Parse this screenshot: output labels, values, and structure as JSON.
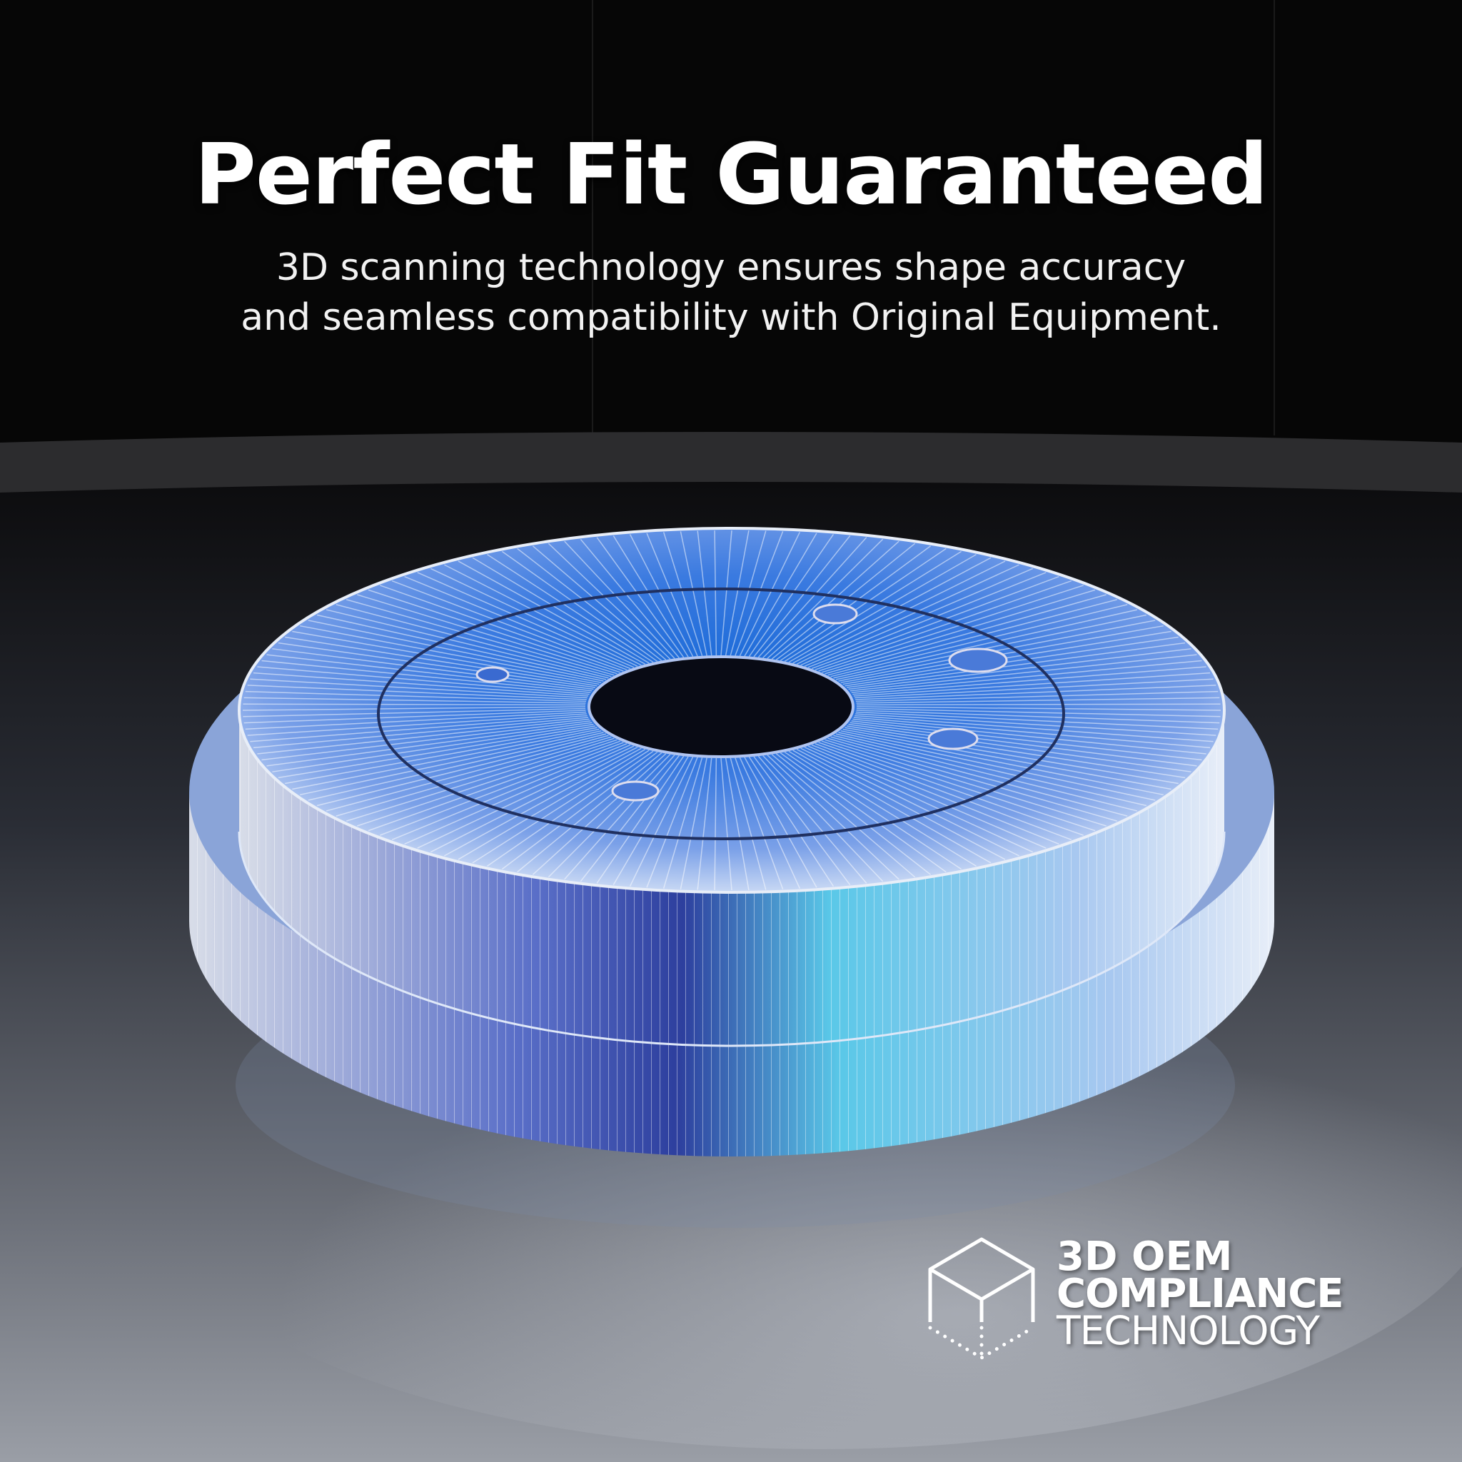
{
  "header": {
    "title": "Perfect Fit Guaranteed",
    "subtitle_line1": "3D scanning technology ensures shape accuracy",
    "subtitle_line2": "and seamless compatibility with Original Equipment."
  },
  "badge": {
    "icon": "cube-icon",
    "line1": "3D OEM",
    "line2": "COMPLIANCE",
    "line3": "TECHNOLOGY"
  },
  "colors": {
    "accent": "#4aa8ff",
    "background": "#050505",
    "floor": "#8a9098"
  }
}
